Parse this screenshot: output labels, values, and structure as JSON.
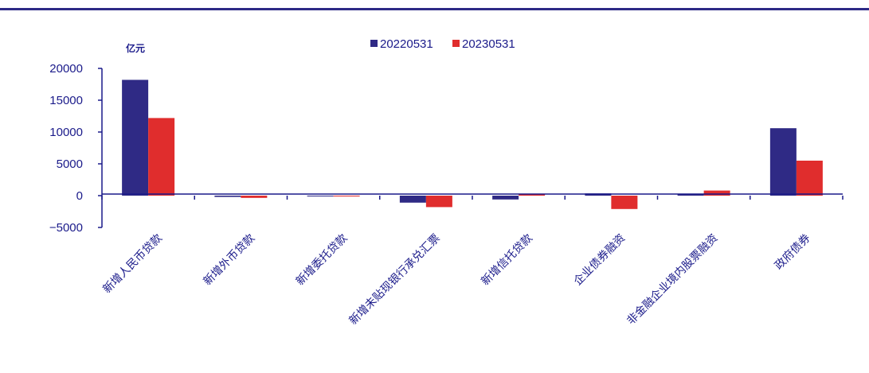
{
  "chart_data": {
    "type": "bar",
    "unit_label": "亿元",
    "categories": [
      "新增人民币贷款",
      "新增外币贷款",
      "新增委托贷款",
      "新增未贴现银行承兑汇票",
      "新增信托贷款",
      "企业债券融资",
      "非金融企业境内股票融资",
      "政府债券"
    ],
    "series": [
      {
        "name": "20220531",
        "color": "#2f2a85",
        "values": [
          18200,
          -200,
          -100,
          -1100,
          -600,
          350,
          300,
          10600
        ]
      },
      {
        "name": "20230531",
        "color": "#e02d2d",
        "values": [
          12200,
          -350,
          -50,
          -1800,
          250,
          -2100,
          800,
          5500
        ]
      }
    ],
    "ylim": [
      -5000,
      20000
    ],
    "yticks": [
      20000,
      15000,
      10000,
      5000,
      0,
      -5000
    ],
    "ytick_labels": [
      "20000",
      "15000",
      "10000",
      "5000",
      "0",
      "−5000"
    ],
    "legend_position": "top-center",
    "grid": false
  }
}
